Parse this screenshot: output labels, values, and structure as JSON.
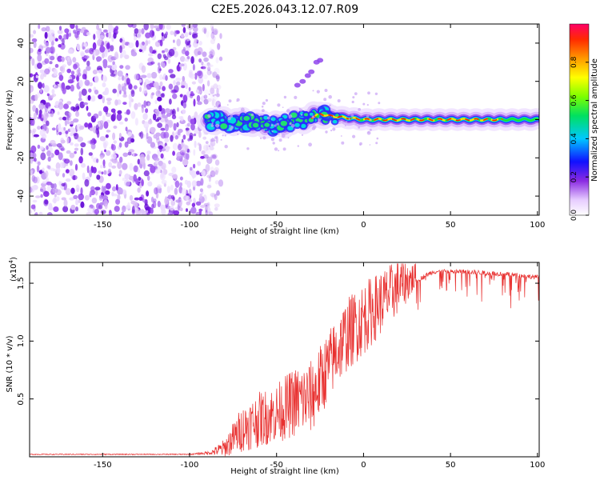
{
  "title": "C2E5.2026.043.12.07.R09",
  "chart_data": [
    {
      "type": "heatmap",
      "name": "spectrogram",
      "xlabel": "Height of straight line (km)",
      "ylabel": "Frequency (Hz)",
      "xlim": [
        -192,
        101
      ],
      "ylim": [
        -50,
        50
      ],
      "xticks": [
        -150,
        -100,
        -50,
        0,
        50,
        100
      ],
      "yticks": [
        -40,
        -20,
        0,
        20,
        40
      ],
      "noise_region_x": [
        -192,
        -88
      ],
      "carrier_line": {
        "x": [
          -90,
          -80,
          -70,
          -60,
          -50,
          -40,
          -30,
          -25,
          -20,
          -10,
          0,
          10,
          30,
          60,
          100
        ],
        "freq": [
          0,
          -1,
          -1,
          -2,
          -3,
          -1,
          1,
          3,
          2,
          1,
          0,
          0,
          0,
          0,
          0
        ]
      },
      "echo_branch": {
        "x": [
          -38,
          -35,
          -32,
          -30,
          -27,
          -25
        ],
        "freq": [
          18,
          20,
          23,
          25,
          30,
          31
        ]
      },
      "colorbar": {
        "label": "Normalized spectral amplitude",
        "range": [
          0,
          1
        ],
        "ticks": [
          "0.0",
          "0.2",
          "0.4",
          "0.6",
          "0.8"
        ]
      }
    },
    {
      "type": "line",
      "name": "snr",
      "xlabel": "Height of straight line (km)",
      "ylabel": "SNR (10 * v/v)",
      "scale_label": "(x10",
      "scale_exponent": "4",
      "xlim": [
        -192,
        101
      ],
      "ylim": [
        0,
        1.68
      ],
      "xticks": [
        -150,
        -100,
        -50,
        0,
        50,
        100
      ],
      "yticks": [
        "0.5",
        "1.0",
        "1.5"
      ],
      "color": "#e8302f",
      "envelope": {
        "x": [
          -192,
          -100,
          -88,
          -80,
          -70,
          -60,
          -50,
          -40,
          -30,
          -25,
          -20,
          -10,
          0,
          10,
          20,
          30,
          40,
          60,
          80,
          101
        ],
        "base": [
          0.02,
          0.02,
          0.03,
          0.05,
          0.18,
          0.25,
          0.3,
          0.38,
          0.42,
          0.55,
          0.7,
          0.95,
          1.1,
          1.25,
          1.4,
          1.52,
          1.6,
          1.6,
          1.58,
          1.55
        ],
        "spread": [
          0.005,
          0.005,
          0.02,
          0.1,
          0.25,
          0.3,
          0.32,
          0.38,
          0.4,
          0.4,
          0.38,
          0.4,
          0.4,
          0.35,
          0.3,
          0.15,
          0.06,
          0.1,
          0.12,
          0.15
        ]
      }
    }
  ]
}
